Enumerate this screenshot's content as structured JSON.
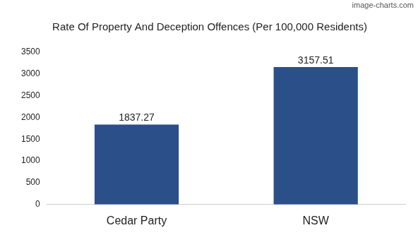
{
  "chart_data": {
    "type": "bar",
    "title": "Rate Of Property And Deception Offences (Per 100,000 Residents)",
    "categories": [
      "Cedar Party",
      "NSW"
    ],
    "values": [
      1837.27,
      3157.51
    ],
    "color": "#2b5089",
    "ylim": [
      0,
      3500
    ],
    "yticks": [
      0,
      500,
      1000,
      1500,
      2000,
      2500,
      3000,
      3500
    ],
    "grid": false,
    "data_labels": true,
    "annotations": [
      "image-charts.com"
    ]
  }
}
